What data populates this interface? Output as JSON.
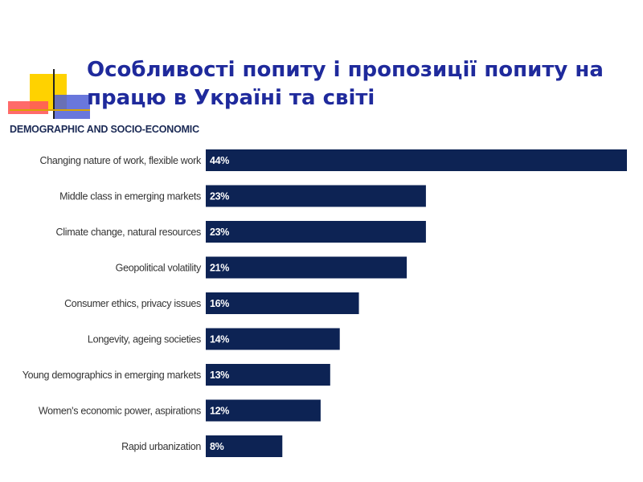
{
  "slide": {
    "title": "Особливості попиту і пропозиції попиту на працю в Україні та світі"
  },
  "chart_data": {
    "type": "bar",
    "orientation": "horizontal",
    "title": "DEMOGRAPHIC AND SOCIO-ECONOMIC",
    "categories": [
      "Changing nature of work, flexible work",
      "Middle class in emerging markets",
      "Climate change, natural resources",
      "Geopolitical volatility",
      "Consumer ethics, privacy issues",
      "Longevity, ageing societies",
      "Young demographics in emerging markets",
      "Women's economic power, aspirations",
      "Rapid urbanization"
    ],
    "values": [
      44,
      23,
      23,
      21,
      16,
      14,
      13,
      12,
      8
    ],
    "value_labels": [
      "44%",
      "23%",
      "23%",
      "21%",
      "16%",
      "14%",
      "13%",
      "12%",
      "8%"
    ],
    "xlim": [
      0,
      44
    ],
    "grid": false,
    "bar_color": "#0d2354",
    "label_color": "#ffffff",
    "category_color": "#333333"
  }
}
